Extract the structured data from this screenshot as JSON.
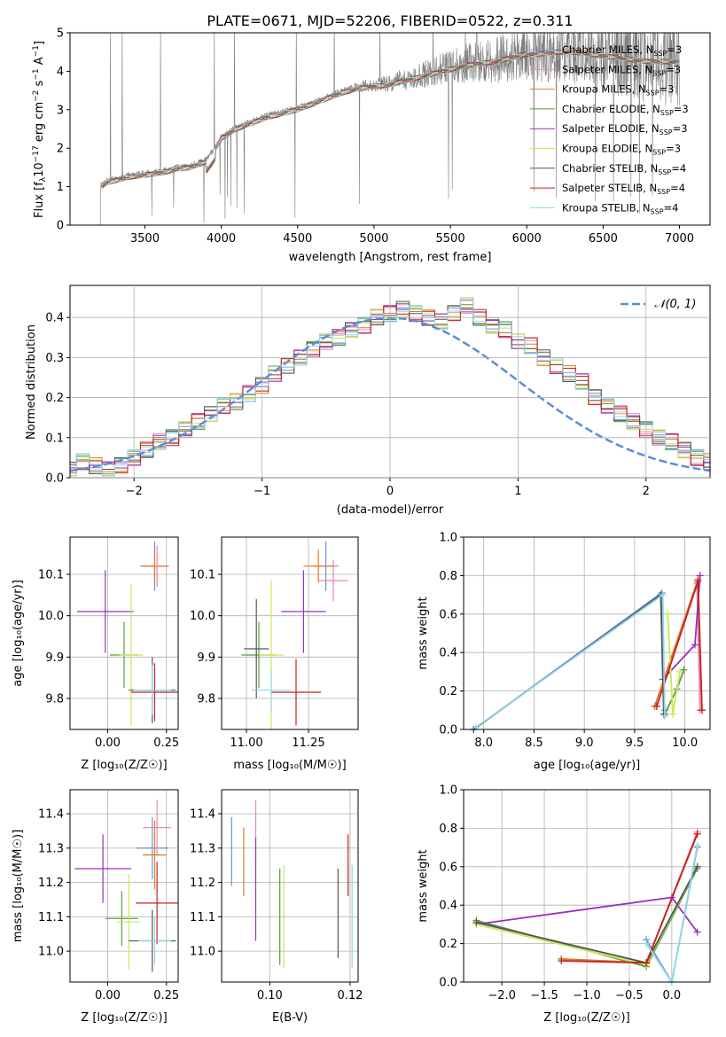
{
  "figure_title": "PLATE=0671, MJD=52206, FIBERID=0522, z=0.311",
  "colors": {
    "Chabrier MILES": "#6b8fd9",
    "Salpeter MILES": "#e888b4",
    "Kroupa MILES": "#e07b28",
    "Chabrier ELODIE": "#5a9a3a",
    "Salpeter ELODIE": "#9a2fbf",
    "Kroupa ELODIE": "#c8e85a",
    "Chabrier STELIB": "#555555",
    "Salpeter STELIB": "#c42222",
    "Kroupa STELIB": "#8fd8e8",
    "data": "#808080",
    "normal": "#5b8ed6"
  },
  "chart_data": [
    {
      "id": "spectrum",
      "type": "line",
      "xlabel": "wavelength [Angstrom, rest frame]",
      "ylabel": "Flux [f_λ 10⁻¹⁷ erg cm⁻² s⁻¹ A⁻¹]",
      "xlim": [
        3010,
        7200
      ],
      "ylim": [
        0,
        5
      ],
      "xticks": [
        3500,
        4000,
        4500,
        5000,
        5500,
        6000,
        6500,
        7000
      ],
      "yticks": [
        0,
        1,
        2,
        3,
        4,
        5
      ],
      "grid": false,
      "legend_position": "upper-right",
      "legend": [
        "Chabrier MILES, N_SSP=3",
        "Salpeter MILES, N_SSP=3",
        "Kroupa MILES, N_SSP=3",
        "Chabrier ELODIE, N_SSP=3",
        "Salpeter ELODIE, N_SSP=3",
        "Kroupa ELODIE, N_SSP=3",
        "Chabrier STELIB, N_SSP=4",
        "Salpeter STELIB, N_SSP=4",
        "Kroupa STELIB, N_SSP=4"
      ],
      "continuum": {
        "wavelength": [
          3200,
          3250,
          3400,
          3500,
          3600,
          3700,
          3800,
          3900,
          3950,
          4000,
          4100,
          4200,
          4300,
          4400,
          4500,
          4600,
          4700,
          4800,
          4900,
          5000,
          5100,
          5200,
          5300,
          5400,
          5500,
          5600,
          5700,
          5800,
          5900,
          6000,
          6100,
          6200,
          6300,
          6400,
          6500,
          6600,
          6700,
          6800,
          6900,
          7000
        ],
        "flux": [
          1.0,
          1.15,
          1.3,
          1.35,
          1.4,
          1.5,
          1.55,
          1.7,
          1.95,
          2.3,
          2.55,
          2.7,
          2.85,
          2.95,
          3.05,
          3.2,
          3.35,
          3.5,
          3.6,
          3.65,
          3.7,
          3.8,
          3.9,
          4.0,
          4.1,
          4.2,
          4.25,
          4.3,
          4.4,
          4.5,
          4.5,
          4.55,
          4.55,
          4.5,
          4.45,
          4.4,
          4.35,
          4.3,
          4.3,
          4.3
        ]
      }
    },
    {
      "id": "residuals",
      "type": "histogram",
      "xlabel": "(data-model)/error",
      "ylabel": "Normed distribution",
      "xlim": [
        -2.5,
        2.5
      ],
      "ylim": [
        0,
        0.48
      ],
      "xticks": [
        -2,
        -1,
        0,
        1,
        2
      ],
      "yticks": [
        0.0,
        0.1,
        0.2,
        0.3,
        0.4
      ],
      "grid": true,
      "legend": [
        "𝒩(0, 1)"
      ],
      "legend_position": "upper-right",
      "bin_width": 0.1,
      "series": [
        {
          "name": "Chabrier MILES",
          "values": [
            0.02,
            0.04,
            0.03,
            0.02,
            0.03,
            0.05,
            0.07,
            0.09,
            0.1,
            0.12,
            0.14,
            0.16,
            0.18,
            0.19,
            0.21,
            0.23,
            0.26,
            0.28,
            0.3,
            0.32,
            0.34,
            0.35,
            0.37,
            0.38,
            0.4,
            0.41,
            0.42,
            0.41,
            0.4,
            0.39,
            0.41,
            0.43,
            0.4,
            0.38,
            0.37,
            0.34,
            0.33,
            0.3,
            0.28,
            0.26,
            0.24,
            0.2,
            0.18,
            0.16,
            0.14,
            0.12,
            0.1,
            0.09,
            0.07,
            0.05,
            0.04
          ]
        }
      ]
    },
    {
      "id": "age-vs-Z",
      "type": "scatter",
      "xlabel": "Z [log₁₀(Z/Z☉)]",
      "ylabel": "age  [log₁₀(age/yr)]",
      "xlim": [
        -0.16,
        0.3
      ],
      "ylim": [
        9.725,
        10.19
      ],
      "xticks": [
        0.0,
        0.25
      ],
      "xtick_labels": [
        "0.00",
        "0.25"
      ],
      "yticks": [
        9.8,
        9.9,
        10.0,
        10.1
      ],
      "grid": true
    },
    {
      "id": "age-vs-mass",
      "type": "scatter",
      "xlabel": "mass [log₁₀(M/M☉)]",
      "ylabel": "",
      "xlim": [
        10.9,
        11.45
      ],
      "ylim": [
        9.725,
        10.19
      ],
      "xticks": [
        11.0,
        11.25
      ],
      "xtick_labels": [
        "11.00",
        "11.25"
      ],
      "yticks": [
        9.8,
        9.9,
        10.0,
        10.1
      ],
      "grid": true
    },
    {
      "id": "mass-weight-vs-age",
      "type": "line",
      "xlabel": "age  [log₁₀(age/yr)]",
      "ylabel": "mass weight",
      "xlim": [
        7.8,
        10.25
      ],
      "ylim": [
        0,
        1
      ],
      "xticks": [
        8.0,
        8.5,
        9.0,
        9.5,
        10.0
      ],
      "yticks": [
        0.0,
        0.2,
        0.4,
        0.6,
        0.8,
        1.0
      ],
      "grid": true,
      "series": [
        {
          "name": "Chabrier MILES",
          "x": [
            7.9,
            9.77,
            9.8
          ],
          "y": [
            0.0,
            0.71,
            0.1
          ]
        },
        {
          "name": "Salpeter MILES",
          "x": [
            9.7,
            10.12,
            10.15
          ],
          "y": [
            0.12,
            0.76,
            0.1
          ]
        },
        {
          "name": "Kroupa MILES",
          "x": [
            9.7,
            10.13,
            10.17
          ],
          "y": [
            0.12,
            0.78,
            0.1
          ]
        },
        {
          "name": "Chabrier ELODIE",
          "x": [
            9.8,
            9.92,
            9.99
          ],
          "y": [
            0.08,
            0.21,
            0.31
          ]
        },
        {
          "name": "Salpeter ELODIE",
          "x": [
            9.78,
            10.1,
            10.15
          ],
          "y": [
            0.26,
            0.44,
            0.8
          ]
        },
        {
          "name": "Kroupa ELODIE",
          "x": [
            9.83,
            9.88,
            9.95
          ],
          "y": [
            0.6,
            0.08,
            0.3
          ]
        },
        {
          "name": "Chabrier STELIB",
          "x": [
            7.9,
            9.76,
            9.79
          ],
          "y": [
            0.0,
            0.7,
            0.08
          ]
        },
        {
          "name": "Salpeter STELIB",
          "x": [
            9.72,
            10.13,
            10.17
          ],
          "y": [
            0.12,
            0.77,
            0.1
          ]
        },
        {
          "name": "Kroupa STELIB",
          "x": [
            7.92,
            9.78,
            9.8
          ],
          "y": [
            0.01,
            0.7,
            0.07
          ]
        }
      ]
    },
    {
      "id": "mass-vs-Z",
      "type": "scatter",
      "xlabel": "Z [log₁₀(Z/Z☉)]",
      "ylabel": "mass [log₁₀(M/M☉)]",
      "xlim": [
        -0.16,
        0.3
      ],
      "ylim": [
        10.91,
        11.47
      ],
      "xticks": [
        0.0,
        0.25
      ],
      "xtick_labels": [
        "0.00",
        "0.25"
      ],
      "yticks": [
        11.0,
        11.1,
        11.2,
        11.3,
        11.4
      ],
      "grid": true
    },
    {
      "id": "mass-vs-ebv",
      "type": "scatter",
      "xlabel": "E(B-V)",
      "ylabel": "",
      "xlim": [
        0.088,
        0.122
      ],
      "ylim": [
        10.91,
        11.47
      ],
      "xticks": [
        0.1,
        0.12
      ],
      "xtick_labels": [
        "0.10",
        "0.12"
      ],
      "yticks": [
        11.0,
        11.1,
        11.2,
        11.3,
        11.4
      ],
      "grid": true
    },
    {
      "id": "mass-weight-vs-Z",
      "type": "line",
      "xlabel": "Z [log₁₀(Z/Z☉)]",
      "ylabel": "mass weight",
      "xlim": [
        -2.45,
        0.45
      ],
      "ylim": [
        0,
        1
      ],
      "xticks": [
        -2.0,
        -1.5,
        -1.0,
        -0.5,
        0.0
      ],
      "yticks": [
        0.0,
        0.2,
        0.4,
        0.6,
        0.8,
        1.0
      ],
      "grid": true,
      "series": [
        {
          "name": "Chabrier MILES",
          "x": [
            -0.3,
            0.0,
            0.3
          ],
          "y": [
            0.22,
            0.0,
            0.7
          ]
        },
        {
          "name": "Salpeter MILES",
          "x": [
            -1.3,
            -0.3,
            0.3
          ],
          "y": [
            0.12,
            0.1,
            0.78
          ]
        },
        {
          "name": "Kroupa MILES",
          "x": [
            -1.3,
            -0.3,
            0.3
          ],
          "y": [
            0.12,
            0.1,
            0.77
          ]
        },
        {
          "name": "Chabrier ELODIE",
          "x": [
            -2.3,
            -0.3,
            0.3
          ],
          "y": [
            0.32,
            0.08,
            0.59
          ]
        },
        {
          "name": "Salpeter ELODIE",
          "x": [
            -2.3,
            0.0,
            0.3
          ],
          "y": [
            0.3,
            0.44,
            0.26
          ]
        },
        {
          "name": "Kroupa ELODIE",
          "x": [
            -2.3,
            -0.3,
            0.3
          ],
          "y": [
            0.3,
            0.09,
            0.6
          ]
        },
        {
          "name": "Chabrier STELIB",
          "x": [
            -2.3,
            -0.3,
            0.3
          ],
          "y": [
            0.31,
            0.1,
            0.6
          ]
        },
        {
          "name": "Salpeter STELIB",
          "x": [
            -1.3,
            -0.3,
            0.3
          ],
          "y": [
            0.11,
            0.1,
            0.77
          ]
        },
        {
          "name": "Kroupa STELIB",
          "x": [
            -0.3,
            0.0,
            0.3
          ],
          "y": [
            0.2,
            0.0,
            0.71
          ]
        }
      ]
    }
  ]
}
